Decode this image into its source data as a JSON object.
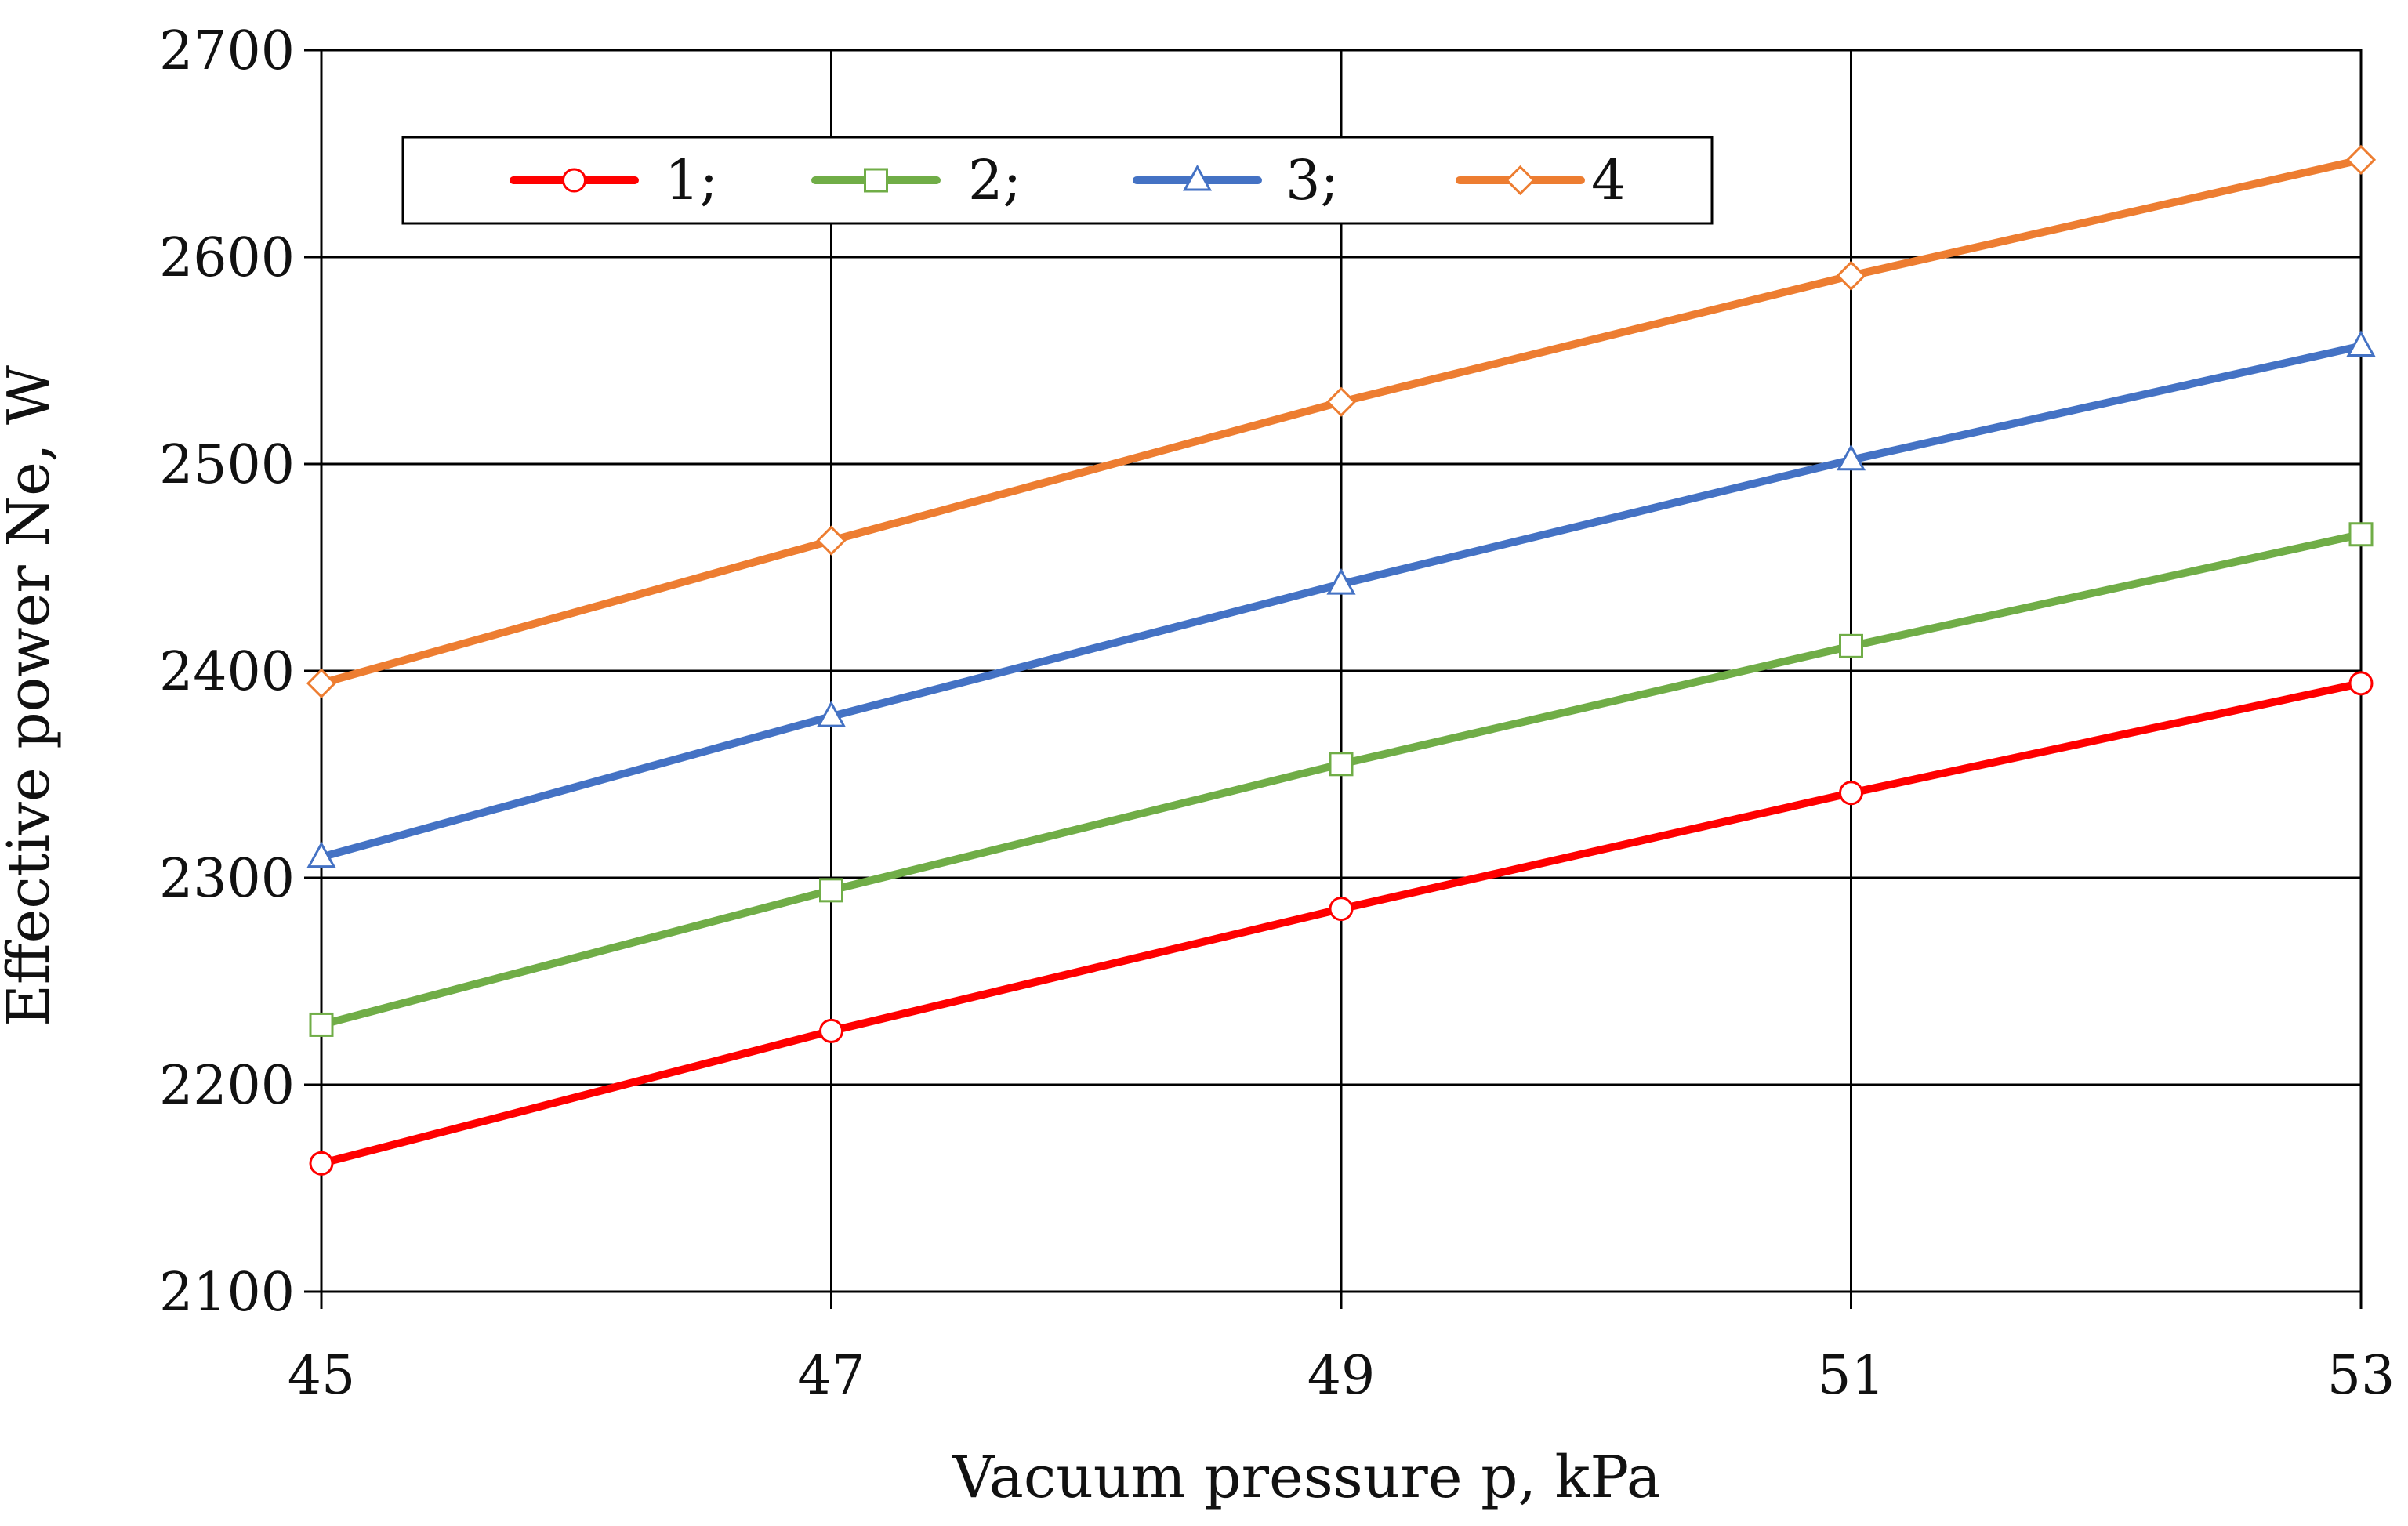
{
  "chart_data": {
    "type": "line",
    "title": "",
    "xlabel": "Vacuum pressure p, kPa",
    "ylabel": "Effective power Ne, W",
    "x": [
      45,
      47,
      49,
      51,
      53
    ],
    "xlim": [
      45,
      53
    ],
    "ylim": [
      2100,
      2700
    ],
    "xticks": [
      "45",
      "47",
      "49",
      "51",
      "53"
    ],
    "yticks": [
      "2100",
      "2200",
      "2300",
      "2400",
      "2500",
      "2600",
      "2700"
    ],
    "grid": true,
    "legend_position": "top-left",
    "series": [
      {
        "name": "1;",
        "color": "#ff0000",
        "marker": "circle",
        "values": [
          2162,
          2226,
          2285,
          2341,
          2394
        ]
      },
      {
        "name": "2;",
        "color": "#70ad47",
        "marker": "square",
        "values": [
          2229,
          2294,
          2355,
          2412,
          2466
        ]
      },
      {
        "name": "3;",
        "color": "#4472c4",
        "marker": "triangle",
        "values": [
          2310,
          2378,
          2442,
          2502,
          2557
        ]
      },
      {
        "name": "4",
        "color": "#ed7d31",
        "marker": "diamond",
        "values": [
          2394,
          2463,
          2530,
          2591,
          2647
        ]
      }
    ]
  }
}
